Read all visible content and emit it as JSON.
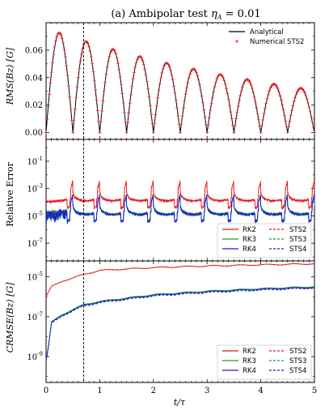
{
  "figure": {
    "title": "(a) Ambipolar test ",
    "title_math": "η",
    "title_math_sub": "A",
    "title_math_rest": " = 0.01",
    "xlabel": "t/τ",
    "x_tick_labels": [
      "0",
      "1",
      "2",
      "3",
      "4",
      "5"
    ],
    "dashed_vline_x": 0.7
  },
  "chart_data": [
    {
      "type": "line",
      "panel": "top",
      "ylabel": "RMS(Bz) [G]",
      "xlim": [
        0,
        5
      ],
      "ylim": [
        -0.005,
        0.08
      ],
      "y_ticks": [
        0.0,
        0.02,
        0.04,
        0.06
      ],
      "y_tick_labels": [
        "0.00",
        "0.02",
        "0.04",
        "0.06"
      ],
      "amplitude": 0.076,
      "decay_rate": 0.18,
      "half_period": 0.5,
      "series": [
        {
          "name": "Analytical",
          "color": "#000000",
          "style": "solid-line"
        },
        {
          "name": "Numerical STS2",
          "color": "#e8151b",
          "style": "plus-marker"
        }
      ],
      "peaks": [
        {
          "x": 0.25,
          "y": 0.076
        },
        {
          "x": 0.75,
          "y": 0.069
        },
        {
          "x": 1.25,
          "y": 0.063
        },
        {
          "x": 1.75,
          "y": 0.057
        },
        {
          "x": 2.25,
          "y": 0.051
        },
        {
          "x": 2.75,
          "y": 0.046
        },
        {
          "x": 3.25,
          "y": 0.042
        },
        {
          "x": 3.75,
          "y": 0.038
        },
        {
          "x": 4.25,
          "y": 0.034
        },
        {
          "x": 4.75,
          "y": 0.031
        }
      ],
      "legend_position": "upper-right"
    },
    {
      "type": "line",
      "panel": "middle",
      "ylabel": "Relative Error",
      "yscale": "log",
      "xlim": [
        0,
        5
      ],
      "ylim_log10": [
        -8.3,
        0.6
      ],
      "y_ticks_log10": [
        -7,
        -5,
        -3,
        -1
      ],
      "y_tick_labels": [
        "10-7",
        "10-5",
        "10-3",
        "10-1"
      ],
      "rk2_baseline": 0.0001,
      "others_baseline": 1e-05,
      "spike_times": [
        0.5,
        1.0,
        1.5,
        2.0,
        2.5,
        3.0,
        3.5,
        4.0,
        4.5,
        5.0
      ],
      "series": [
        {
          "name": "RK2",
          "color": "#e8151b",
          "style": "solid"
        },
        {
          "name": "RK3",
          "color": "#1f9e2b",
          "style": "solid"
        },
        {
          "name": "RK4",
          "color": "#1a1fd1",
          "style": "solid"
        },
        {
          "name": "STS2",
          "color": "#e8151b",
          "style": "dashed"
        },
        {
          "name": "STS3",
          "color": "#1f9e2b",
          "style": "dashed"
        },
        {
          "name": "STS4",
          "color": "#1a1fd1",
          "style": "dashed"
        }
      ],
      "legend_position": "lower-right"
    },
    {
      "type": "line",
      "panel": "bottom",
      "ylabel": "CRMSE(Bz) [G]",
      "yscale": "log",
      "xlim": [
        0,
        5
      ],
      "ylim_log10": [
        -10.3,
        -4.2
      ],
      "y_ticks_log10": [
        -9,
        -7,
        -5
      ],
      "y_tick_labels": [
        "10-9",
        "10-7",
        "10-5"
      ],
      "rk2_curve": [
        {
          "x": 0.0,
          "y": 1e-06
        },
        {
          "x": 0.1,
          "y": 3.2e-06
        },
        {
          "x": 0.3,
          "y": 6e-06
        },
        {
          "x": 0.7,
          "y": 1.3e-05
        },
        {
          "x": 1.0,
          "y": 2.1e-05
        },
        {
          "x": 2.0,
          "y": 2.9e-05
        },
        {
          "x": 3.0,
          "y": 3.5e-05
        },
        {
          "x": 4.0,
          "y": 4e-05
        },
        {
          "x": 5.0,
          "y": 4.5e-05
        }
      ],
      "others_curve": [
        {
          "x": 0.0,
          "y": 6e-10
        },
        {
          "x": 0.05,
          "y": 4e-09
        },
        {
          "x": 0.1,
          "y": 5e-08
        },
        {
          "x": 0.3,
          "y": 1.2e-07
        },
        {
          "x": 0.7,
          "y": 3.8e-07
        },
        {
          "x": 1.0,
          "y": 5.5e-07
        },
        {
          "x": 2.0,
          "y": 1.2e-06
        },
        {
          "x": 3.0,
          "y": 1.8e-06
        },
        {
          "x": 4.0,
          "y": 2.4e-06
        },
        {
          "x": 5.0,
          "y": 3e-06
        }
      ],
      "series": [
        {
          "name": "RK2",
          "color": "#e8151b",
          "style": "solid"
        },
        {
          "name": "RK3",
          "color": "#1f9e2b",
          "style": "solid"
        },
        {
          "name": "RK4",
          "color": "#1a1fd1",
          "style": "solid"
        },
        {
          "name": "STS2",
          "color": "#e8151b",
          "style": "dashed"
        },
        {
          "name": "STS3",
          "color": "#1f9e2b",
          "style": "dashed"
        },
        {
          "name": "STS4",
          "color": "#1a1fd1",
          "style": "dashed"
        }
      ],
      "legend_position": "lower-right"
    }
  ]
}
